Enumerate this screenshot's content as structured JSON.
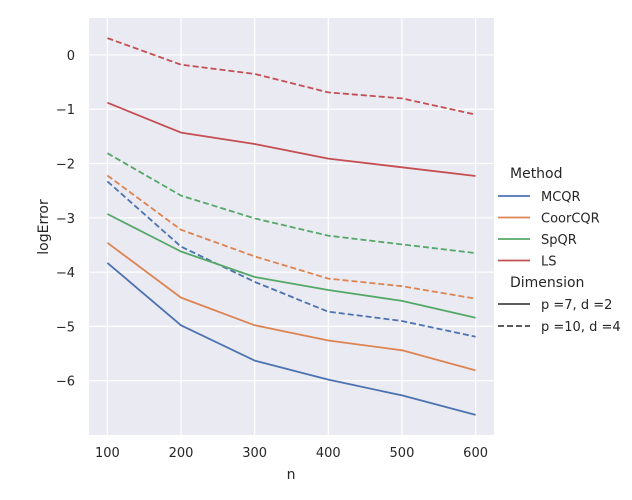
{
  "chart_data": {
    "type": "line",
    "title": "",
    "xlabel": "n",
    "ylabel": "logError",
    "x": [
      100,
      200,
      300,
      400,
      500,
      600
    ],
    "xticks": [
      100,
      200,
      300,
      400,
      500,
      600
    ],
    "yticks": [
      0,
      -1,
      -2,
      -3,
      -4,
      -5,
      -6
    ],
    "xlim": [
      75,
      625
    ],
    "ylim": [
      -7.0,
      0.68
    ],
    "grid": true,
    "background_color": "#eaeaf2",
    "grid_color": "#ffffff",
    "legend_position": "right",
    "legend": {
      "hue_title": "Method",
      "style_title": "Dimension",
      "methods": [
        {
          "name": "MCQR",
          "color": "#4c72b0"
        },
        {
          "name": "CoorCQR",
          "color": "#dd8452"
        },
        {
          "name": "SpQR",
          "color": "#55a868"
        },
        {
          "name": "LS",
          "color": "#c44e52"
        }
      ],
      "dimensions": [
        {
          "name": "p =7, d =2",
          "style": "solid"
        },
        {
          "name": "p =10, d =4",
          "style": "dashed"
        }
      ]
    },
    "series": [
      {
        "method": "MCQR",
        "dimension": "p =7, d =2",
        "values": [
          -3.83,
          -4.98,
          -5.63,
          -5.98,
          -6.27,
          -6.63
        ]
      },
      {
        "method": "MCQR",
        "dimension": "p =10, d =4",
        "values": [
          -2.33,
          -3.53,
          -4.18,
          -4.73,
          -4.9,
          -5.19
        ]
      },
      {
        "method": "CoorCQR",
        "dimension": "p =7, d =2",
        "values": [
          -3.46,
          -4.47,
          -4.98,
          -5.26,
          -5.44,
          -5.81
        ]
      },
      {
        "method": "CoorCQR",
        "dimension": "p =10, d =4",
        "values": [
          -2.22,
          -3.22,
          -3.71,
          -4.12,
          -4.26,
          -4.49
        ]
      },
      {
        "method": "SpQR",
        "dimension": "p =7, d =2",
        "values": [
          -2.93,
          -3.62,
          -4.09,
          -4.33,
          -4.53,
          -4.84
        ]
      },
      {
        "method": "SpQR",
        "dimension": "p =10, d =4",
        "values": [
          -1.81,
          -2.59,
          -3.01,
          -3.33,
          -3.49,
          -3.65
        ]
      },
      {
        "method": "LS",
        "dimension": "p =7, d =2",
        "values": [
          -0.88,
          -1.43,
          -1.64,
          -1.91,
          -2.07,
          -2.23
        ]
      },
      {
        "method": "LS",
        "dimension": "p =10, d =4",
        "values": [
          0.31,
          -0.18,
          -0.35,
          -0.69,
          -0.8,
          -1.1
        ]
      }
    ]
  }
}
